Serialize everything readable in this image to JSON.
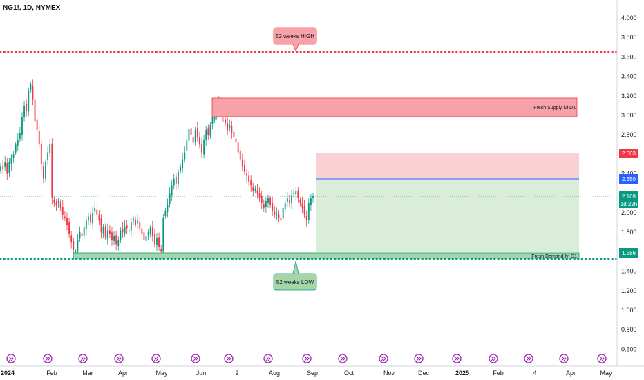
{
  "header": {
    "symbol": "NG1!, 1D, NYMEX"
  },
  "chart_data": {
    "type": "candlestick",
    "title": "NG1!, 1D, NYMEX",
    "ylim": [
      0.5,
      4.1
    ],
    "y_ticks": [
      "4.000",
      "3.800",
      "3.600",
      "3.400",
      "3.200",
      "3.000",
      "2.800",
      "2.600",
      "2.400",
      "2.200",
      "2.000",
      "1.800",
      "1.600",
      "1.400",
      "1.200",
      "1.000",
      "0.800",
      "0.600"
    ],
    "x_ticks": [
      "2024",
      "Feb",
      "Mar",
      "Apr",
      "May",
      "Jun",
      "2",
      "Aug",
      "Sep",
      "Oct",
      "Nov",
      "Dec",
      "2025",
      "Feb",
      "4",
      "Apr",
      "May"
    ],
    "levels": [
      {
        "name": "52 weeks HIGH",
        "value": 3.65,
        "color": "#f23645"
      },
      {
        "name": "52 weeks LOW",
        "value": 1.53,
        "color": "#089981"
      }
    ],
    "zones": [
      {
        "label": "Fresh Supply lvl D1",
        "y_from": 2.98,
        "y_to": 3.18,
        "color": "#f7a1a8"
      },
      {
        "label": "Fresh Demand lvl D1",
        "y_from": 1.53,
        "y_to": 1.59,
        "color": "#a5d6a7"
      }
    ],
    "position": {
      "entry": 2.35,
      "target": 2.603,
      "stop": 1.586,
      "current": 2.169,
      "countdown": "1d 22h"
    },
    "price_tags": [
      {
        "value": 2.603,
        "label": "2.603",
        "color": "#f23645"
      },
      {
        "value": 2.35,
        "label": "2.350",
        "color": "#2962ff"
      },
      {
        "value": 2.169,
        "label": "2.169",
        "sub": "1d 22h",
        "color": "#089981"
      },
      {
        "value": 1.586,
        "label": "1.586",
        "color": "#089981"
      }
    ],
    "series": [
      {
        "name": "close",
        "values": [
          2.48,
          2.45,
          2.52,
          2.4,
          2.52,
          2.56,
          2.6,
          2.7,
          2.75,
          2.82,
          2.98,
          3.1,
          3.05,
          3.25,
          3.32,
          3.16,
          2.94,
          2.85,
          2.7,
          2.5,
          2.35,
          2.52,
          2.62,
          2.7,
          2.15,
          2.1,
          2.08,
          2.12,
          2.05,
          1.98,
          1.95,
          1.88,
          1.78,
          1.7,
          1.62,
          1.6,
          1.72,
          1.8,
          1.76,
          1.85,
          1.92,
          1.96,
          1.9,
          2.0,
          2.05,
          1.98,
          1.92,
          1.8,
          1.85,
          1.75,
          1.82,
          1.78,
          1.72,
          1.76,
          1.68,
          1.72,
          1.82,
          1.8,
          1.86,
          1.84,
          1.82,
          1.9,
          1.94,
          1.88,
          1.92,
          1.84,
          1.78,
          1.72,
          1.76,
          1.8,
          1.85,
          1.76,
          1.68,
          1.74,
          1.65,
          1.6,
          1.95,
          2.02,
          2.08,
          2.2,
          2.28,
          2.35,
          2.3,
          2.42,
          2.48,
          2.55,
          2.62,
          2.75,
          2.86,
          2.8,
          2.72,
          2.85,
          2.78,
          2.7,
          2.62,
          2.75,
          2.85,
          2.8,
          2.9,
          2.98,
          3.02,
          3.1,
          3.15,
          3.05,
          2.98,
          2.92,
          2.85,
          2.9,
          2.82,
          2.78,
          2.72,
          2.62,
          2.55,
          2.48,
          2.42,
          2.38,
          2.32,
          2.28,
          2.22,
          2.25,
          2.2,
          2.15,
          2.1,
          2.05,
          2.12,
          2.15,
          2.08,
          2.02,
          1.98,
          2.0,
          1.95,
          1.92,
          2.05,
          2.1,
          2.15,
          2.1,
          2.18,
          2.2,
          2.22,
          2.15,
          2.1,
          2.05,
          1.98,
          1.92,
          2.1,
          2.15,
          2.17
        ]
      }
    ]
  }
}
